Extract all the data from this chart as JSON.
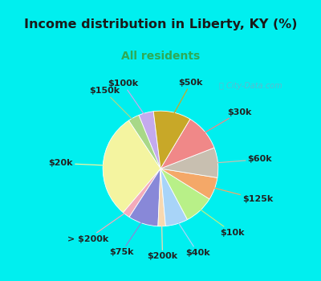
{
  "title": "Income distribution in Liberty, KY (%)",
  "subtitle": "All residents",
  "title_color": "#1a1a1a",
  "subtitle_color": "#2eaa55",
  "background_outer": "#00efef",
  "background_inner_color": "#dff0e8",
  "watermark": "ⓘ City-Data.com",
  "labels": [
    "$100k",
    "$150k",
    "$20k",
    "> $200k",
    "$75k",
    "$200k",
    "$40k",
    "$10k",
    "$125k",
    "$60k",
    "$30k",
    "$50k"
  ],
  "sizes": [
    4,
    3,
    28,
    2,
    8,
    2,
    6,
    8,
    6,
    8,
    10,
    10
  ],
  "colors": [
    "#c4aaee",
    "#a8d888",
    "#f4f4a0",
    "#f4aabb",
    "#8888d8",
    "#f8d8b0",
    "#a8d4f8",
    "#b8f088",
    "#f4a868",
    "#c8bfb0",
    "#f08888",
    "#c8a828"
  ],
  "startangle": 97,
  "label_fontsize": 8,
  "label_fontweight": "bold"
}
